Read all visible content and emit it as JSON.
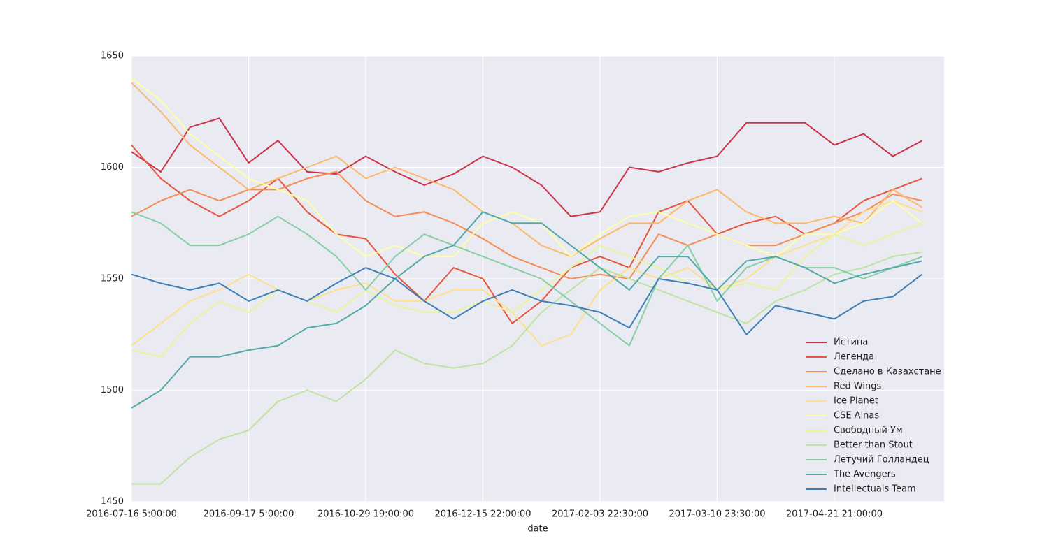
{
  "chart_data": {
    "type": "line",
    "x_label": "date",
    "categories": [
      "2016-07-16 5:00:00",
      null,
      null,
      null,
      "2016-09-17 5:00:00",
      null,
      null,
      null,
      "2016-10-29 19:00:00",
      null,
      null,
      null,
      "2016-12-15 22:00:00",
      null,
      null,
      null,
      "2017-02-03 22:30:00",
      null,
      null,
      null,
      "2017-03-10 23:30:00",
      null,
      null,
      null,
      "2017-04-21 21:00:00",
      null,
      null,
      null
    ],
    "ylim": [
      1450,
      1650
    ],
    "yticks": [
      1450,
      1500,
      1550,
      1600,
      1650
    ],
    "grid": true,
    "legend": "lower right",
    "series": [
      {
        "name": "Истина",
        "color": "#cc3349",
        "values": [
          1607,
          1598,
          1618,
          1622,
          1602,
          1612,
          1598,
          1597,
          1605,
          1598,
          1592,
          1597,
          1605,
          1600,
          1592,
          1578,
          1580,
          1600,
          1598,
          1602,
          1605,
          1620,
          1620,
          1620,
          1610,
          1615,
          1605,
          1612
        ]
      },
      {
        "name": "Легенда",
        "color": "#e8553e",
        "values": [
          1610,
          1595,
          1585,
          1578,
          1585,
          1595,
          1580,
          1570,
          1568,
          1552,
          1540,
          1555,
          1550,
          1530,
          1540,
          1555,
          1560,
          1555,
          1580,
          1585,
          1570,
          1575,
          1578,
          1570,
          1575,
          1585,
          1590,
          1595
        ]
      },
      {
        "name": "Сделано в Казахстане",
        "color": "#f68d52",
        "values": [
          1578,
          1585,
          1590,
          1585,
          1590,
          1590,
          1595,
          1598,
          1585,
          1578,
          1580,
          1575,
          1568,
          1560,
          1555,
          1550,
          1552,
          1550,
          1570,
          1565,
          1570,
          1565,
          1565,
          1570,
          1575,
          1580,
          1588,
          1585
        ]
      },
      {
        "name": "Red Wings",
        "color": "#fdb96a",
        "values": [
          1638,
          1625,
          1610,
          1600,
          1590,
          1595,
          1600,
          1605,
          1595,
          1600,
          1595,
          1590,
          1580,
          1575,
          1565,
          1560,
          1568,
          1575,
          1575,
          1585,
          1590,
          1580,
          1575,
          1575,
          1578,
          1575,
          1590,
          1582
        ]
      },
      {
        "name": "Ice Planet",
        "color": "#fee08b",
        "values": [
          1520,
          1530,
          1540,
          1545,
          1552,
          1545,
          1540,
          1545,
          1548,
          1540,
          1540,
          1545,
          1545,
          1535,
          1520,
          1525,
          1545,
          1555,
          1550,
          1555,
          1545,
          1550,
          1560,
          1565,
          1570,
          1580,
          1585,
          1580
        ]
      },
      {
        "name": "CSE Alnas",
        "color": "#fdfea6",
        "values": [
          1640,
          1630,
          1615,
          1605,
          1595,
          1590,
          1585,
          1570,
          1560,
          1565,
          1560,
          1560,
          1575,
          1580,
          1575,
          1560,
          1570,
          1578,
          1580,
          1575,
          1570,
          1565,
          1560,
          1570,
          1570,
          1575,
          1585,
          1575
        ]
      },
      {
        "name": "Свободный Ум",
        "color": "#e6f598",
        "values": [
          1518,
          1515,
          1530,
          1540,
          1535,
          1545,
          1540,
          1535,
          1545,
          1538,
          1535,
          1535,
          1540,
          1535,
          1545,
          1555,
          1565,
          1560,
          1555,
          1548,
          1545,
          1548,
          1545,
          1560,
          1570,
          1565,
          1570,
          1575
        ]
      },
      {
        "name": "Better than Stout",
        "color": "#bde4a0",
        "values": [
          1458,
          1458,
          1470,
          1478,
          1482,
          1495,
          1500,
          1495,
          1505,
          1518,
          1512,
          1510,
          1512,
          1520,
          1535,
          1545,
          1555,
          1550,
          1545,
          1540,
          1535,
          1530,
          1540,
          1545,
          1552,
          1555,
          1560,
          1562
        ]
      },
      {
        "name": "Летучий Голландец",
        "color": "#86cfa5",
        "values": [
          1580,
          1575,
          1565,
          1565,
          1570,
          1578,
          1570,
          1560,
          1545,
          1560,
          1570,
          1565,
          1560,
          1555,
          1550,
          1540,
          1530,
          1520,
          1550,
          1565,
          1540,
          1555,
          1560,
          1555,
          1555,
          1550,
          1555,
          1560
        ]
      },
      {
        "name": "The Avengers",
        "color": "#52aaa8",
        "values": [
          1492,
          1500,
          1515,
          1515,
          1518,
          1520,
          1528,
          1530,
          1538,
          1550,
          1560,
          1565,
          1580,
          1575,
          1575,
          1565,
          1555,
          1545,
          1560,
          1560,
          1545,
          1558,
          1560,
          1555,
          1548,
          1552,
          1555,
          1558
        ]
      },
      {
        "name": "Intellectuals Team",
        "color": "#3d7fb8",
        "values": [
          1552,
          1548,
          1545,
          1548,
          1540,
          1545,
          1540,
          1548,
          1555,
          1550,
          1540,
          1532,
          1540,
          1545,
          1540,
          1538,
          1535,
          1528,
          1550,
          1548,
          1545,
          1525,
          1538,
          1535,
          1532,
          1540,
          1542,
          1552
        ]
      }
    ]
  }
}
